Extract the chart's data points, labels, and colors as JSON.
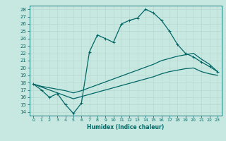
{
  "xlabel": "Humidex (Indice chaleur)",
  "xlim": [
    -0.5,
    23.5
  ],
  "ylim": [
    13.5,
    28.5
  ],
  "xticks": [
    0,
    1,
    2,
    3,
    4,
    5,
    6,
    7,
    8,
    9,
    10,
    11,
    12,
    13,
    14,
    15,
    16,
    17,
    18,
    19,
    20,
    21,
    22,
    23
  ],
  "yticks": [
    14,
    15,
    16,
    17,
    18,
    19,
    20,
    21,
    22,
    23,
    24,
    25,
    26,
    27,
    28
  ],
  "bg_color": "#c6e8e0",
  "grid_color": "#aed4cc",
  "line_color": "#006666",
  "line1_x": [
    0,
    1,
    2,
    3,
    4,
    5,
    6,
    7,
    8,
    9,
    10,
    11,
    12,
    13,
    14,
    15,
    16,
    17,
    18,
    19,
    20,
    21,
    22,
    23
  ],
  "line1_y": [
    17.8,
    17.0,
    16.0,
    16.5,
    15.0,
    13.8,
    15.2,
    22.2,
    24.5,
    24.0,
    23.5,
    26.0,
    26.5,
    26.8,
    28.0,
    27.5,
    26.5,
    25.0,
    23.2,
    22.0,
    21.5,
    20.8,
    20.2,
    19.5
  ],
  "line2_x": [
    0,
    1,
    2,
    3,
    4,
    5,
    6,
    7,
    8,
    9,
    10,
    11,
    12,
    13,
    14,
    15,
    16,
    17,
    18,
    19,
    20,
    21,
    22,
    23
  ],
  "line2_y": [
    17.8,
    17.5,
    17.3,
    17.1,
    16.9,
    16.6,
    16.9,
    17.3,
    17.7,
    18.1,
    18.5,
    18.9,
    19.3,
    19.7,
    20.1,
    20.5,
    21.0,
    21.3,
    21.6,
    21.8,
    22.0,
    21.2,
    20.5,
    19.5
  ],
  "line3_x": [
    0,
    1,
    2,
    3,
    4,
    5,
    6,
    7,
    8,
    9,
    10,
    11,
    12,
    13,
    14,
    15,
    16,
    17,
    18,
    19,
    20,
    21,
    22,
    23
  ],
  "line3_y": [
    17.8,
    17.4,
    17.0,
    16.6,
    16.2,
    15.8,
    16.1,
    16.4,
    16.7,
    17.0,
    17.3,
    17.6,
    17.9,
    18.2,
    18.5,
    18.8,
    19.2,
    19.5,
    19.7,
    19.9,
    20.0,
    19.5,
    19.2,
    19.0
  ]
}
